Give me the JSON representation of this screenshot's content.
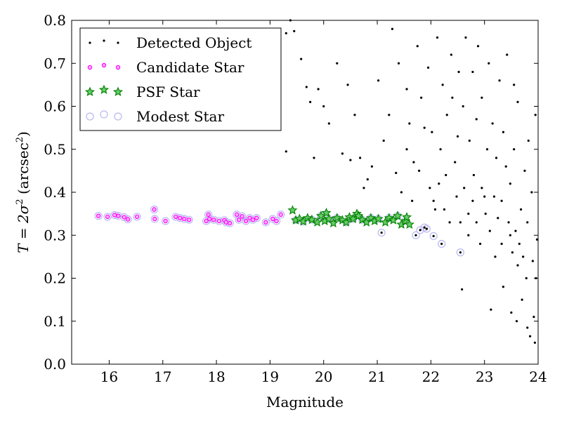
{
  "chart_data": {
    "type": "scatter",
    "xlabel": "Magnitude",
    "ylabel_prefix": "T = 2σ",
    "ylabel_sup1": "2",
    "ylabel_mid": " (arcsec",
    "ylabel_sup2": "2",
    "ylabel_suffix": ")",
    "xlim": [
      15.3,
      24
    ],
    "ylim": [
      0.0,
      0.8
    ],
    "xticks": [
      "16",
      "17",
      "18",
      "19",
      "20",
      "21",
      "22",
      "23",
      "24"
    ],
    "yticks": [
      "0.0",
      "0.1",
      "0.2",
      "0.3",
      "0.4",
      "0.5",
      "0.6",
      "0.7",
      "0.8"
    ],
    "grid": false,
    "legend_position": "top-left",
    "colors": {
      "detected": "#000000",
      "candidate": "#ff00ff",
      "psf": "#008000",
      "modest": "#b8b8f0"
    },
    "series": [
      {
        "name": "Detected Object",
        "marker": "dot",
        "points": [
          [
            15.8,
            0.345
          ],
          [
            15.97,
            0.343
          ],
          [
            16.1,
            0.347
          ],
          [
            16.17,
            0.345
          ],
          [
            16.28,
            0.342
          ],
          [
            16.35,
            0.337
          ],
          [
            16.52,
            0.343
          ],
          [
            16.84,
            0.36
          ],
          [
            16.85,
            0.338
          ],
          [
            17.05,
            0.333
          ],
          [
            17.24,
            0.343
          ],
          [
            17.32,
            0.34
          ],
          [
            17.4,
            0.338
          ],
          [
            17.49,
            0.336
          ],
          [
            17.81,
            0.333
          ],
          [
            17.85,
            0.348
          ],
          [
            17.87,
            0.338
          ],
          [
            17.95,
            0.336
          ],
          [
            18.05,
            0.333
          ],
          [
            18.15,
            0.335
          ],
          [
            18.18,
            0.33
          ],
          [
            18.25,
            0.328
          ],
          [
            18.38,
            0.348
          ],
          [
            18.42,
            0.336
          ],
          [
            18.48,
            0.344
          ],
          [
            18.55,
            0.333
          ],
          [
            18.62,
            0.34
          ],
          [
            18.68,
            0.336
          ],
          [
            18.75,
            0.34
          ],
          [
            18.92,
            0.33
          ],
          [
            19.05,
            0.338
          ],
          [
            19.12,
            0.333
          ],
          [
            19.2,
            0.348
          ],
          [
            19.48,
            0.335
          ],
          [
            19.55,
            0.338
          ],
          [
            19.62,
            0.332
          ],
          [
            19.7,
            0.34
          ],
          [
            19.78,
            0.336
          ],
          [
            19.88,
            0.33
          ],
          [
            19.95,
            0.345
          ],
          [
            20.02,
            0.333
          ],
          [
            20.1,
            0.338
          ],
          [
            20.18,
            0.328
          ],
          [
            20.25,
            0.34
          ],
          [
            20.35,
            0.335
          ],
          [
            20.42,
            0.33
          ],
          [
            20.55,
            0.338
          ],
          [
            20.65,
            0.345
          ],
          [
            20.72,
            0.336
          ],
          [
            20.8,
            0.33
          ],
          [
            20.88,
            0.34
          ],
          [
            20.95,
            0.333
          ],
          [
            21.02,
            0.338
          ],
          [
            21.08,
            0.306
          ],
          [
            21.15,
            0.33
          ],
          [
            21.22,
            0.34
          ],
          [
            21.3,
            0.335
          ],
          [
            21.38,
            0.345
          ],
          [
            21.45,
            0.325
          ],
          [
            21.52,
            0.333
          ],
          [
            21.6,
            0.325
          ],
          [
            21.72,
            0.3
          ],
          [
            21.8,
            0.312
          ],
          [
            21.88,
            0.318
          ],
          [
            21.92,
            0.315
          ],
          [
            22.05,
            0.298
          ],
          [
            22.2,
            0.28
          ],
          [
            22.55,
            0.26
          ],
          [
            19.3,
            0.495
          ],
          [
            19.3,
            0.77
          ],
          [
            19.38,
            0.8
          ],
          [
            19.45,
            0.775
          ],
          [
            19.58,
            0.71
          ],
          [
            19.68,
            0.645
          ],
          [
            19.75,
            0.61
          ],
          [
            19.82,
            0.48
          ],
          [
            19.9,
            0.64
          ],
          [
            20.0,
            0.6
          ],
          [
            20.1,
            0.56
          ],
          [
            20.25,
            0.7
          ],
          [
            20.35,
            0.49
          ],
          [
            20.45,
            0.65
          ],
          [
            20.5,
            0.475
          ],
          [
            20.58,
            0.58
          ],
          [
            20.68,
            0.48
          ],
          [
            20.75,
            0.41
          ],
          [
            20.82,
            0.43
          ],
          [
            20.9,
            0.46
          ],
          [
            21.02,
            0.66
          ],
          [
            21.12,
            0.52
          ],
          [
            21.22,
            0.58
          ],
          [
            21.35,
            0.445
          ],
          [
            21.45,
            0.4
          ],
          [
            21.55,
            0.5
          ],
          [
            21.65,
            0.38
          ],
          [
            21.78,
            0.45
          ],
          [
            21.88,
            0.55
          ],
          [
            21.98,
            0.41
          ],
          [
            22.08,
            0.36
          ],
          [
            22.18,
            0.5
          ],
          [
            22.28,
            0.44
          ],
          [
            22.4,
            0.62
          ],
          [
            22.5,
            0.53
          ],
          [
            22.58,
            0.174
          ],
          [
            22.7,
            0.3
          ],
          [
            22.78,
            0.68
          ],
          [
            22.85,
            0.57
          ],
          [
            22.92,
            0.28
          ],
          [
            23.05,
            0.5
          ],
          [
            23.12,
            0.127
          ],
          [
            23.2,
            0.25
          ],
          [
            23.32,
            0.38
          ],
          [
            23.4,
            0.46
          ],
          [
            23.48,
            0.3
          ],
          [
            23.55,
            0.65
          ],
          [
            23.62,
            0.23
          ],
          [
            23.7,
            0.15
          ],
          [
            23.78,
            0.2
          ],
          [
            23.85,
            0.065
          ],
          [
            23.92,
            0.11
          ],
          [
            23.98,
            0.29
          ],
          [
            23.94,
            0.05
          ],
          [
            23.8,
            0.085
          ],
          [
            23.6,
            0.1
          ],
          [
            23.35,
            0.18
          ],
          [
            23.5,
            0.12
          ],
          [
            21.28,
            0.78
          ],
          [
            21.4,
            0.7
          ],
          [
            21.55,
            0.64
          ],
          [
            21.6,
            0.56
          ],
          [
            21.68,
            0.47
          ],
          [
            21.75,
            0.74
          ],
          [
            21.82,
            0.62
          ],
          [
            21.95,
            0.69
          ],
          [
            22.02,
            0.54
          ],
          [
            22.12,
            0.76
          ],
          [
            22.22,
            0.65
          ],
          [
            22.3,
            0.58
          ],
          [
            22.38,
            0.72
          ],
          [
            22.45,
            0.47
          ],
          [
            22.52,
            0.68
          ],
          [
            22.6,
            0.6
          ],
          [
            22.65,
            0.76
          ],
          [
            22.72,
            0.52
          ],
          [
            22.8,
            0.44
          ],
          [
            22.88,
            0.74
          ],
          [
            22.95,
            0.62
          ],
          [
            23.0,
            0.39
          ],
          [
            23.08,
            0.7
          ],
          [
            23.15,
            0.56
          ],
          [
            23.22,
            0.48
          ],
          [
            23.28,
            0.66
          ],
          [
            23.35,
            0.54
          ],
          [
            23.42,
            0.72
          ],
          [
            23.48,
            0.42
          ],
          [
            23.55,
            0.5
          ],
          [
            23.62,
            0.61
          ],
          [
            23.68,
            0.36
          ],
          [
            23.75,
            0.45
          ],
          [
            23.82,
            0.52
          ],
          [
            23.88,
            0.4
          ],
          [
            23.95,
            0.58
          ],
          [
            22.05,
            0.38
          ],
          [
            22.15,
            0.42
          ],
          [
            22.25,
            0.36
          ],
          [
            22.35,
            0.33
          ],
          [
            22.48,
            0.39
          ],
          [
            22.55,
            0.33
          ],
          [
            22.62,
            0.41
          ],
          [
            22.7,
            0.35
          ],
          [
            22.78,
            0.38
          ],
          [
            22.85,
            0.33
          ],
          [
            22.95,
            0.41
          ],
          [
            23.02,
            0.35
          ],
          [
            23.1,
            0.31
          ],
          [
            23.18,
            0.39
          ],
          [
            23.25,
            0.34
          ],
          [
            23.32,
            0.28
          ],
          [
            23.45,
            0.33
          ],
          [
            23.52,
            0.26
          ],
          [
            23.58,
            0.31
          ],
          [
            23.65,
            0.28
          ],
          [
            23.72,
            0.25
          ],
          [
            23.8,
            0.33
          ],
          [
            23.9,
            0.24
          ],
          [
            23.96,
            0.2
          ]
        ]
      },
      {
        "name": "Candidate Star",
        "marker": "small-circle",
        "points": [
          [
            15.8,
            0.345
          ],
          [
            15.97,
            0.343
          ],
          [
            16.1,
            0.347
          ],
          [
            16.17,
            0.345
          ],
          [
            16.28,
            0.342
          ],
          [
            16.35,
            0.337
          ],
          [
            16.52,
            0.343
          ],
          [
            16.84,
            0.36
          ],
          [
            16.85,
            0.338
          ],
          [
            17.05,
            0.333
          ],
          [
            17.24,
            0.343
          ],
          [
            17.32,
            0.34
          ],
          [
            17.4,
            0.338
          ],
          [
            17.49,
            0.336
          ],
          [
            17.81,
            0.333
          ],
          [
            17.85,
            0.348
          ],
          [
            17.87,
            0.338
          ],
          [
            17.95,
            0.336
          ],
          [
            18.05,
            0.333
          ],
          [
            18.15,
            0.335
          ],
          [
            18.18,
            0.33
          ],
          [
            18.25,
            0.328
          ],
          [
            18.38,
            0.348
          ],
          [
            18.42,
            0.336
          ],
          [
            18.48,
            0.344
          ],
          [
            18.55,
            0.333
          ],
          [
            18.62,
            0.34
          ],
          [
            18.68,
            0.336
          ],
          [
            18.75,
            0.34
          ],
          [
            18.92,
            0.33
          ],
          [
            19.05,
            0.338
          ],
          [
            19.12,
            0.333
          ],
          [
            19.2,
            0.348
          ]
        ]
      },
      {
        "name": "PSF Star",
        "marker": "star",
        "points": [
          [
            19.42,
            0.358
          ],
          [
            19.48,
            0.335
          ],
          [
            19.55,
            0.338
          ],
          [
            19.62,
            0.332
          ],
          [
            19.7,
            0.34
          ],
          [
            19.78,
            0.336
          ],
          [
            19.88,
            0.33
          ],
          [
            19.95,
            0.345
          ],
          [
            20.02,
            0.333
          ],
          [
            20.05,
            0.352
          ],
          [
            20.1,
            0.338
          ],
          [
            20.18,
            0.328
          ],
          [
            20.25,
            0.34
          ],
          [
            20.35,
            0.335
          ],
          [
            20.42,
            0.33
          ],
          [
            20.48,
            0.342
          ],
          [
            20.55,
            0.338
          ],
          [
            20.62,
            0.35
          ],
          [
            20.65,
            0.345
          ],
          [
            20.72,
            0.336
          ],
          [
            20.8,
            0.33
          ],
          [
            20.88,
            0.34
          ],
          [
            20.95,
            0.333
          ],
          [
            21.02,
            0.338
          ],
          [
            21.15,
            0.33
          ],
          [
            21.22,
            0.34
          ],
          [
            21.3,
            0.335
          ],
          [
            21.38,
            0.345
          ],
          [
            21.45,
            0.325
          ],
          [
            21.52,
            0.333
          ],
          [
            21.55,
            0.342
          ],
          [
            21.6,
            0.325
          ]
        ]
      },
      {
        "name": "Modest Star",
        "marker": "open-circle",
        "points": [
          [
            15.8,
            0.345
          ],
          [
            15.97,
            0.343
          ],
          [
            16.1,
            0.347
          ],
          [
            16.17,
            0.345
          ],
          [
            16.28,
            0.342
          ],
          [
            16.35,
            0.337
          ],
          [
            16.52,
            0.343
          ],
          [
            16.84,
            0.36
          ],
          [
            16.85,
            0.338
          ],
          [
            17.05,
            0.333
          ],
          [
            17.24,
            0.343
          ],
          [
            17.32,
            0.34
          ],
          [
            17.4,
            0.338
          ],
          [
            17.49,
            0.336
          ],
          [
            17.81,
            0.333
          ],
          [
            17.85,
            0.348
          ],
          [
            17.87,
            0.338
          ],
          [
            17.95,
            0.336
          ],
          [
            18.05,
            0.333
          ],
          [
            18.15,
            0.335
          ],
          [
            18.18,
            0.33
          ],
          [
            18.25,
            0.328
          ],
          [
            18.38,
            0.348
          ],
          [
            18.42,
            0.336
          ],
          [
            18.48,
            0.344
          ],
          [
            18.55,
            0.333
          ],
          [
            18.62,
            0.34
          ],
          [
            18.68,
            0.336
          ],
          [
            18.75,
            0.34
          ],
          [
            18.92,
            0.33
          ],
          [
            19.05,
            0.338
          ],
          [
            19.12,
            0.333
          ],
          [
            19.2,
            0.348
          ],
          [
            19.48,
            0.335
          ],
          [
            19.62,
            0.332
          ],
          [
            19.78,
            0.336
          ],
          [
            19.95,
            0.345
          ],
          [
            20.1,
            0.338
          ],
          [
            20.25,
            0.34
          ],
          [
            20.42,
            0.33
          ],
          [
            20.55,
            0.338
          ],
          [
            20.72,
            0.336
          ],
          [
            20.88,
            0.34
          ],
          [
            21.02,
            0.338
          ],
          [
            21.08,
            0.306
          ],
          [
            21.22,
            0.34
          ],
          [
            21.38,
            0.345
          ],
          [
            21.52,
            0.333
          ],
          [
            21.72,
            0.3
          ],
          [
            21.8,
            0.312
          ],
          [
            21.88,
            0.318
          ],
          [
            21.92,
            0.315
          ],
          [
            22.05,
            0.298
          ],
          [
            22.2,
            0.28
          ],
          [
            22.55,
            0.26
          ]
        ]
      }
    ]
  }
}
